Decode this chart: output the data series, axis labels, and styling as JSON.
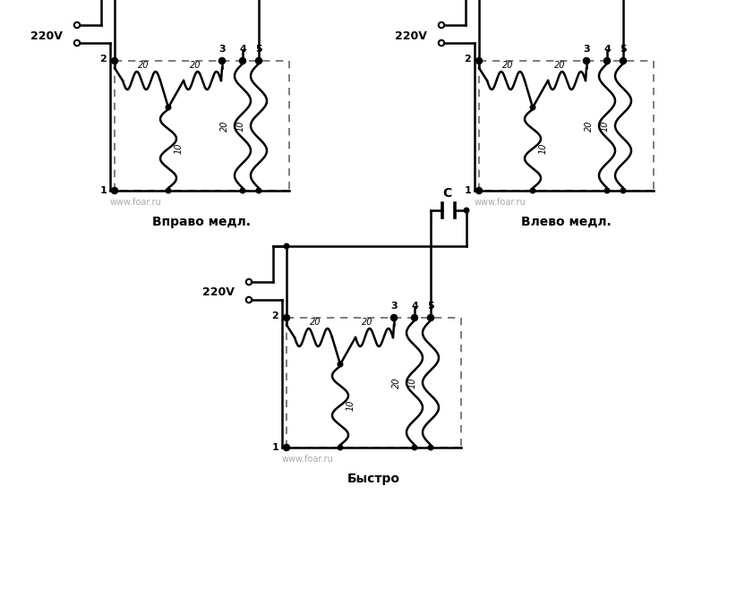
{
  "bg_color": "#ffffff",
  "line_color": "#000000",
  "dashed_color": "#666666",
  "title1": "Вправо медл.",
  "title2": "Влево медл.",
  "title3": "Быстро",
  "watermark": "www.foar.ru",
  "label_220v": "220V",
  "label_c": "C",
  "fig_width": 8.22,
  "fig_height": 6.67,
  "dpi": 100
}
